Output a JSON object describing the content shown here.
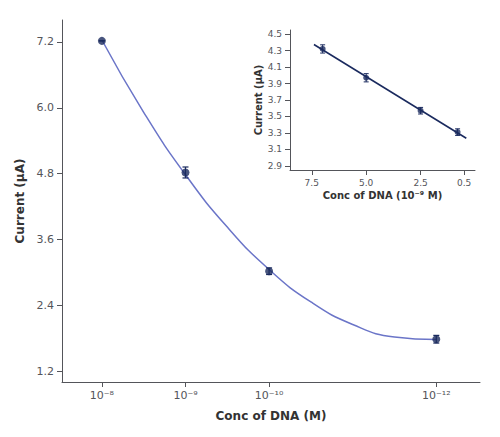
{
  "chart_data": [
    {
      "type": "scatter",
      "xlabel": "Conc of DNA (M)",
      "ylabel": "Current (μA)",
      "log": "x",
      "xlim": [
        3e-08,
        3e-13
      ],
      "ylim": [
        1.0,
        7.6
      ],
      "xticks": [
        {
          "value": 1e-08,
          "label": "10⁻⁸"
        },
        {
          "value": 1e-09,
          "label": "10⁻⁹"
        },
        {
          "value": 1e-10,
          "label": "10⁻¹⁰"
        },
        {
          "value": 1e-12,
          "label": "10⁻¹²"
        }
      ],
      "yticks": [
        1.2,
        2.4,
        3.6,
        4.8,
        {
          "value": 6.0,
          "label": "6.0"
        },
        7.2
      ],
      "grid": false,
      "series": [
        {
          "type": "line",
          "color": "#6b75c8",
          "x": [
            1e-08,
            3.16227766e-09,
            1e-09,
            3.16227766e-10,
            1e-10,
            3.16227766e-11,
            1e-11,
            3.16227766e-12,
            1e-12
          ],
          "values": [
            7.23527,
            5.91637,
            4.77928,
            3.824,
            3.05055,
            2.45891,
            2.0491,
            1.8211,
            1.77492
          ]
        },
        {
          "type": "scatter",
          "marker": "circle",
          "color": "#1a2a5e",
          "x": [
            1e-08,
            1e-09,
            1e-10,
            1e-12
          ],
          "values": [
            7.22,
            4.82,
            3.02,
            1.78
          ],
          "yerr": [
            0.0,
            0.1,
            0.06,
            0.07
          ]
        }
      ]
    },
    {
      "type": "scatter",
      "xlabel": "Conc of DNA (10⁻⁹ M)",
      "ylabel": "Current (μA)",
      "xlim": [
        8.5,
        0.0
      ],
      "ylim": [
        2.85,
        4.55
      ],
      "xticks": [
        7.5,
        {
          "value": 5.0,
          "label": "5.0"
        },
        2.5,
        0.5
      ],
      "yticks": [
        2.9,
        3.1,
        3.3,
        3.5,
        3.7,
        3.9,
        4.1,
        4.3,
        4.5
      ],
      "grid": false,
      "series": [
        {
          "type": "line",
          "color": "#1a2a5e",
          "x": [
            0.4,
            7.4
          ],
          "values": [
            3.235471,
            4.373923
          ]
        },
        {
          "type": "scatter",
          "marker": "circle",
          "color": "#1a2a5e",
          "x": [
            7.0,
            5.0,
            2.5,
            0.8
          ],
          "values": [
            4.32,
            3.97,
            3.57,
            3.31
          ],
          "yerr": [
            0.05,
            0.05,
            0.04,
            0.04
          ]
        }
      ]
    }
  ]
}
